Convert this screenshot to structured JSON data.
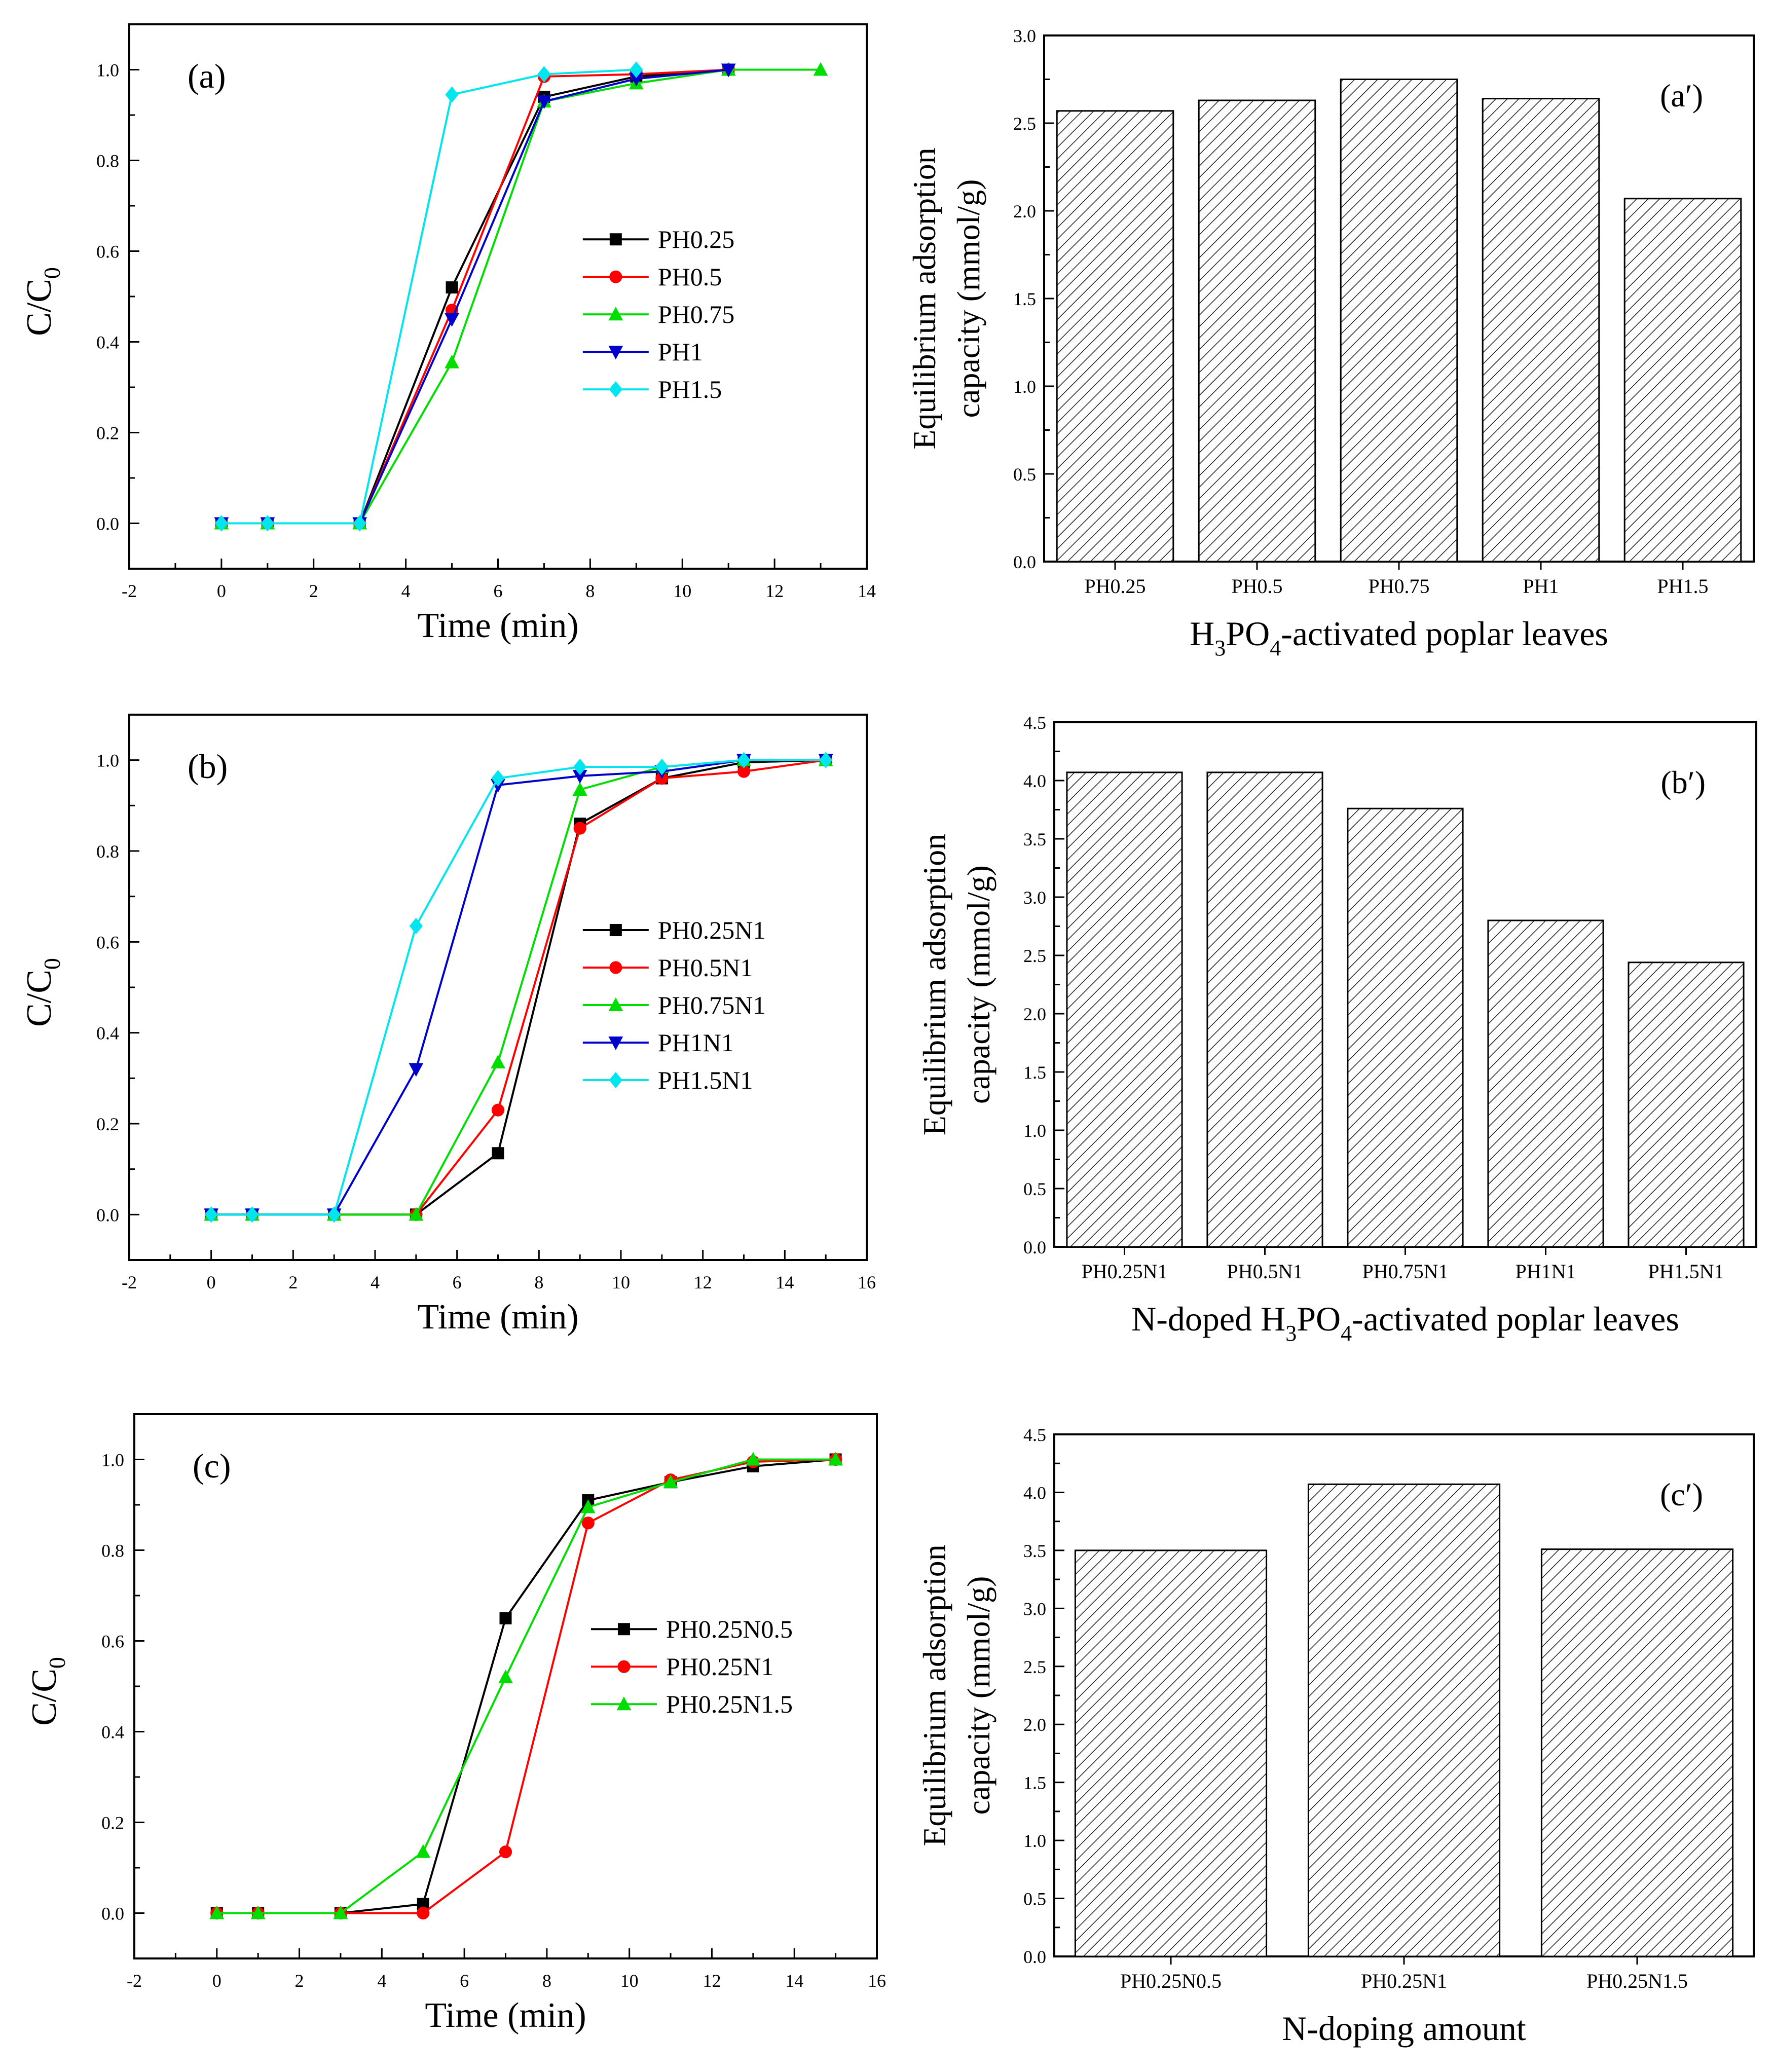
{
  "chart_data": [
    {
      "id": "a",
      "type": "line",
      "panel_label": "(a)",
      "xlabel": "Time (min)",
      "ylabel": "C/C",
      "ylabel_sub": "0",
      "xlim": [
        -2,
        14
      ],
      "ylim": [
        -0.1,
        1.1
      ],
      "xticks": [
        -2,
        0,
        2,
        4,
        6,
        8,
        10,
        12,
        14
      ],
      "yticks": [
        0.0,
        0.2,
        0.4,
        0.6,
        0.8,
        1.0
      ],
      "legend_position": "middle-right",
      "series": [
        {
          "name": "PH0.25",
          "color": "#000000",
          "marker": "square",
          "x": [
            0,
            1,
            3,
            5,
            7,
            9,
            11
          ],
          "y": [
            0,
            0,
            0,
            0.52,
            0.94,
            0.985,
            1.0
          ]
        },
        {
          "name": "PH0.5",
          "color": "#ff0000",
          "marker": "circle",
          "x": [
            0,
            1,
            3,
            5,
            7,
            9,
            11
          ],
          "y": [
            0,
            0,
            0,
            0.47,
            0.985,
            0.99,
            1.0
          ]
        },
        {
          "name": "PH0.75",
          "color": "#00dd00",
          "marker": "triangle-up",
          "x": [
            0,
            1,
            3,
            5,
            7,
            9,
            11,
            13
          ],
          "y": [
            0,
            0,
            0,
            0.355,
            0.93,
            0.97,
            1.0,
            1.0
          ]
        },
        {
          "name": "PH1",
          "color": "#0000cc",
          "marker": "triangle-down",
          "x": [
            0,
            1,
            3,
            5,
            7,
            9,
            11
          ],
          "y": [
            0,
            0,
            0,
            0.45,
            0.93,
            0.98,
            1.0
          ]
        },
        {
          "name": "PH1.5",
          "color": "#00e5ee",
          "marker": "diamond",
          "x": [
            0,
            1,
            3,
            5,
            7,
            9
          ],
          "y": [
            0,
            0,
            0,
            0.945,
            0.99,
            1.0
          ]
        }
      ]
    },
    {
      "id": "a_prime",
      "type": "bar",
      "panel_label": "(a′)",
      "xlabel": "H",
      "xlabel_parts": [
        "H",
        "3",
        "PO",
        "4",
        "-activated poplar leaves"
      ],
      "ylabel": "Equilibrium adsorption",
      "ylabel2": "capacity (mmol/g)",
      "ylim": [
        0,
        3.0
      ],
      "yticks": [
        0.0,
        0.5,
        1.0,
        1.5,
        2.0,
        2.5,
        3.0
      ],
      "categories": [
        "PH0.25",
        "PH0.5",
        "PH0.75",
        "PH1",
        "PH1.5"
      ],
      "values": [
        2.57,
        2.63,
        2.75,
        2.64,
        2.07
      ]
    },
    {
      "id": "b",
      "type": "line",
      "panel_label": "(b)",
      "xlabel": "Time (min)",
      "ylabel": "C/C",
      "ylabel_sub": "0",
      "xlim": [
        -2,
        16
      ],
      "ylim": [
        -0.1,
        1.1
      ],
      "xticks": [
        -2,
        0,
        2,
        4,
        6,
        8,
        10,
        12,
        14,
        16
      ],
      "yticks": [
        0.0,
        0.2,
        0.4,
        0.6,
        0.8,
        1.0
      ],
      "legend_position": "middle-right",
      "series": [
        {
          "name": "PH0.25N1",
          "color": "#000000",
          "marker": "square",
          "x": [
            0,
            1,
            3,
            5,
            7,
            9,
            11,
            13,
            15
          ],
          "y": [
            0,
            0,
            0,
            0,
            0.135,
            0.86,
            0.96,
            0.995,
            1.0
          ]
        },
        {
          "name": "PH0.5N1",
          "color": "#ff0000",
          "marker": "circle",
          "x": [
            0,
            1,
            3,
            5,
            7,
            9,
            11,
            13,
            15
          ],
          "y": [
            0,
            0,
            0,
            0,
            0.23,
            0.85,
            0.96,
            0.975,
            1.0
          ]
        },
        {
          "name": "PH0.75N1",
          "color": "#00dd00",
          "marker": "triangle-up",
          "x": [
            0,
            1,
            3,
            5,
            7,
            9,
            11,
            13,
            15
          ],
          "y": [
            0,
            0,
            0,
            0,
            0.335,
            0.935,
            0.985,
            1.0,
            1.0
          ]
        },
        {
          "name": "PH1N1",
          "color": "#0000cc",
          "marker": "triangle-down",
          "x": [
            0,
            1,
            3,
            5,
            7,
            9,
            11,
            13,
            15
          ],
          "y": [
            0,
            0,
            0,
            0.32,
            0.945,
            0.965,
            0.975,
            1.0,
            1.0
          ]
        },
        {
          "name": "PH1.5N1",
          "color": "#00e5ee",
          "marker": "diamond",
          "x": [
            0,
            1,
            3,
            5,
            7,
            9,
            11,
            13,
            15
          ],
          "y": [
            0,
            0,
            0,
            0.635,
            0.96,
            0.985,
            0.985,
            1.0,
            1.0
          ]
        }
      ]
    },
    {
      "id": "b_prime",
      "type": "bar",
      "panel_label": "(b′)",
      "xlabel": "N-doped H",
      "xlabel_parts": [
        "N-doped H",
        "3",
        "PO",
        "4",
        "-activated poplar leaves"
      ],
      "ylabel": "Equilibrium adsorption",
      "ylabel2": "capacity (mmol/g)",
      "ylim": [
        0,
        4.5
      ],
      "yticks": [
        0.0,
        0.5,
        1.0,
        1.5,
        2.0,
        2.5,
        3.0,
        3.5,
        4.0,
        4.5
      ],
      "categories": [
        "PH0.25N1",
        "PH0.5N1",
        "PH0.75N1",
        "PH1N1",
        "PH1.5N1"
      ],
      "values": [
        4.07,
        4.07,
        3.76,
        2.8,
        2.44
      ]
    },
    {
      "id": "c",
      "type": "line",
      "panel_label": "(c)",
      "xlabel": "Time (min)",
      "ylabel": "C/C",
      "ylabel_sub": "0",
      "xlim": [
        -2,
        16
      ],
      "ylim": [
        -0.1,
        1.1
      ],
      "xticks": [
        -2,
        0,
        2,
        4,
        6,
        8,
        10,
        12,
        14,
        16
      ],
      "yticks": [
        0.0,
        0.2,
        0.4,
        0.6,
        0.8,
        1.0
      ],
      "legend_position": "middle-right",
      "series": [
        {
          "name": "PH0.25N0.5",
          "color": "#000000",
          "marker": "square",
          "x": [
            0,
            1,
            3,
            5,
            7,
            9,
            11,
            13,
            15
          ],
          "y": [
            0,
            0,
            0,
            0.02,
            0.65,
            0.91,
            0.95,
            0.985,
            1.0
          ]
        },
        {
          "name": "PH0.25N1",
          "color": "#ff0000",
          "marker": "circle",
          "x": [
            0,
            1,
            3,
            5,
            7,
            9,
            11,
            13,
            15
          ],
          "y": [
            0,
            0,
            0,
            0,
            0.135,
            0.86,
            0.955,
            0.995,
            1.0
          ]
        },
        {
          "name": "PH0.25N1.5",
          "color": "#00dd00",
          "marker": "triangle-up",
          "x": [
            0,
            1,
            3,
            5,
            7,
            9,
            11,
            13,
            15
          ],
          "y": [
            0,
            0,
            0,
            0.135,
            0.52,
            0.895,
            0.95,
            1.0,
            1.0
          ]
        }
      ]
    },
    {
      "id": "c_prime",
      "type": "bar",
      "panel_label": "(c′)",
      "xlabel": "N-doping amount",
      "xlabel_parts": [
        "N-doping amount"
      ],
      "ylabel": "Equilibrium adsorption",
      "ylabel2": "capacity (mmol/g)",
      "ylim": [
        0,
        4.5
      ],
      "yticks": [
        0.0,
        0.5,
        1.0,
        1.5,
        2.0,
        2.5,
        3.0,
        3.5,
        4.0,
        4.5
      ],
      "categories": [
        "PH0.25N0.5",
        "PH0.25N1",
        "PH0.25N1.5"
      ],
      "values": [
        3.5,
        4.07,
        3.51
      ]
    }
  ]
}
